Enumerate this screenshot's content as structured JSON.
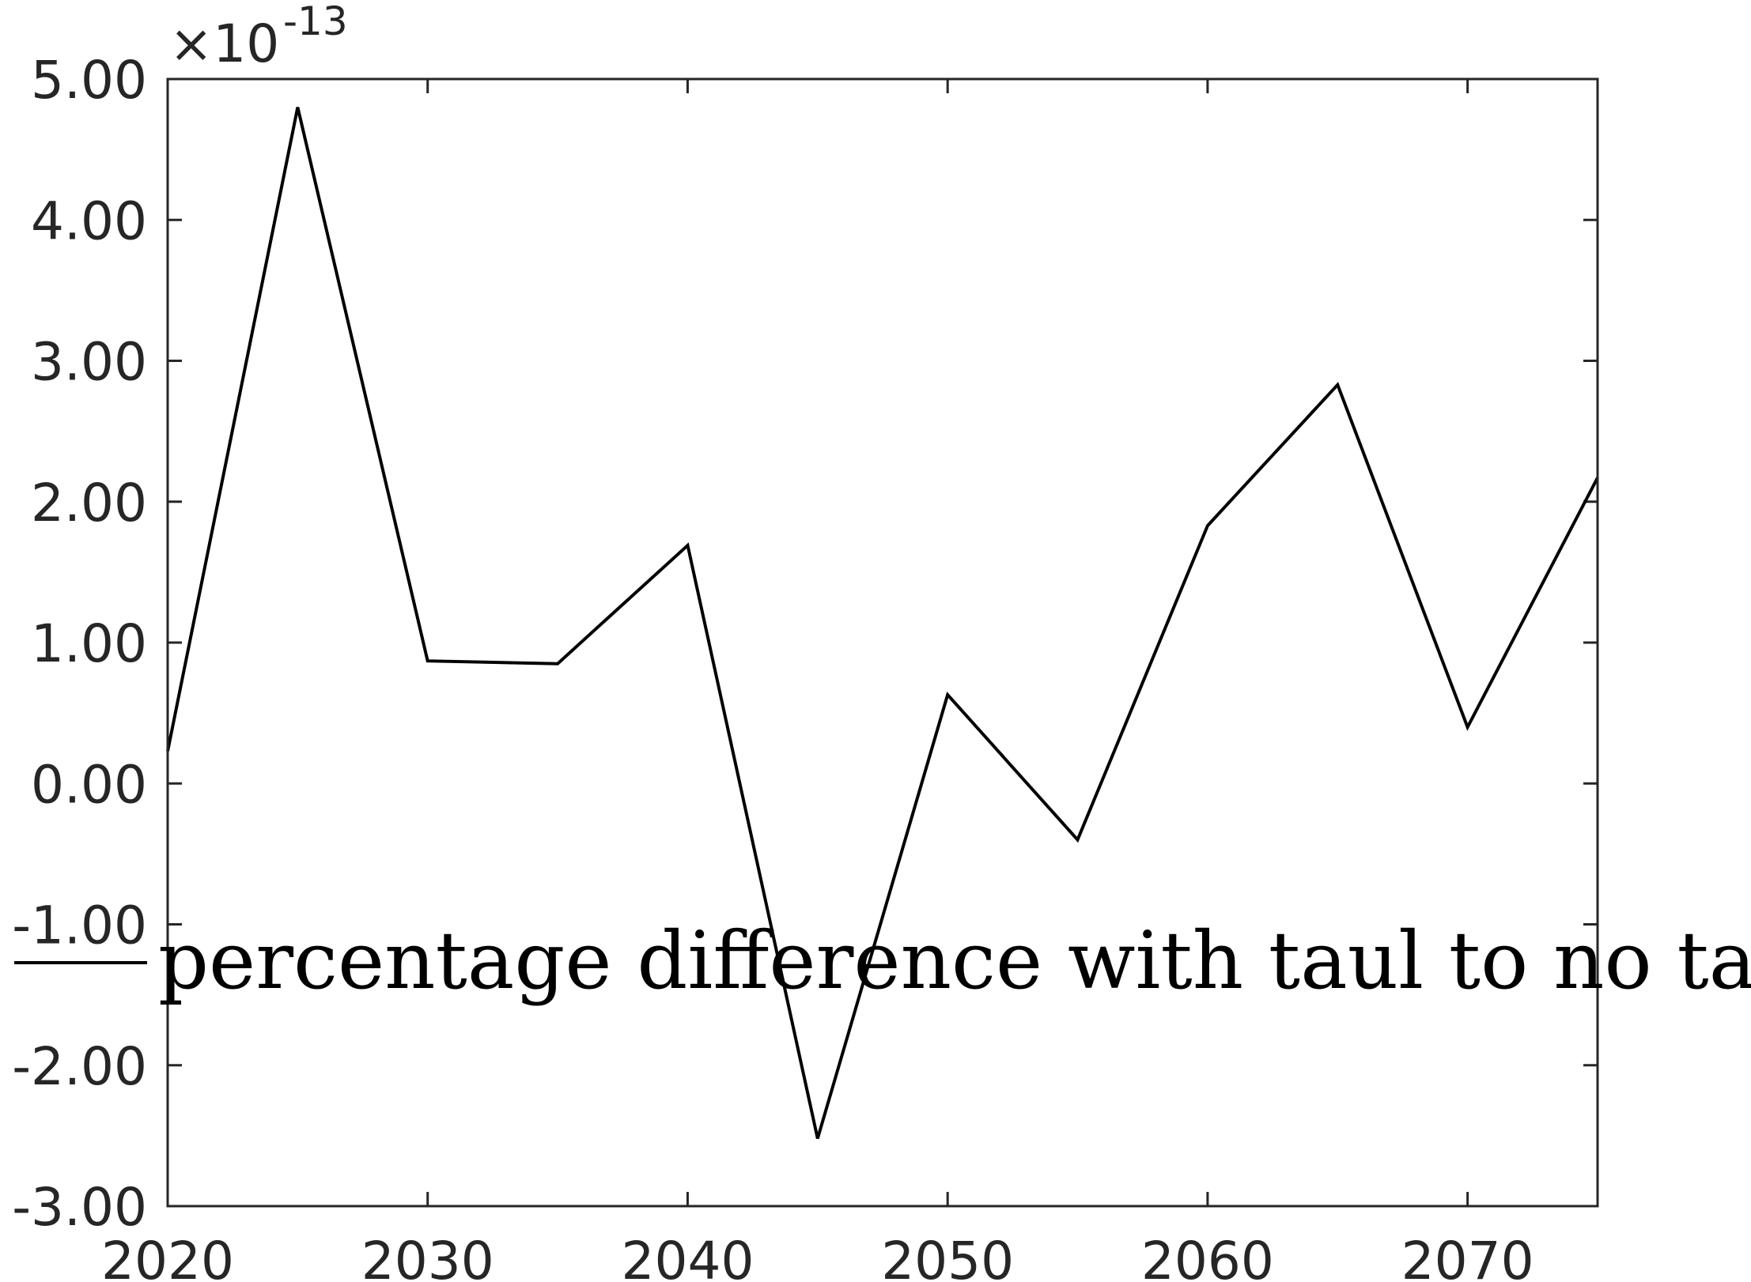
{
  "chart_data": {
    "type": "line",
    "title": "",
    "xlabel": "",
    "ylabel": "",
    "y_multiplier_label": {
      "base": "×10",
      "exponent": "-13"
    },
    "xlim": [
      2020,
      2075
    ],
    "ylim": [
      -3.0,
      5.0
    ],
    "x_ticks": [
      2020,
      2030,
      2040,
      2050,
      2060,
      2070
    ],
    "x_tick_labels": [
      "2020",
      "2030",
      "2040",
      "2050",
      "2060",
      "2070"
    ],
    "y_ticks": [
      -3,
      -2,
      -1,
      0,
      1,
      2,
      3,
      4,
      5
    ],
    "y_tick_labels": [
      "-3.00",
      "-2.00",
      "-1.00",
      "0.00",
      "1.00",
      "2.00",
      "3.00",
      "4.00",
      "5.00"
    ],
    "grid": false,
    "legend_position": "center-left",
    "series": [
      {
        "name": "percentage difference with taul to no taul",
        "color": "#000000",
        "x": [
          2020,
          2025,
          2030,
          2035,
          2040,
          2045,
          2050,
          2055,
          2060,
          2065,
          2070,
          2075
        ],
        "y": [
          0.23,
          4.8,
          0.87,
          0.85,
          1.69,
          -2.52,
          0.63,
          -0.4,
          1.83,
          2.83,
          0.4,
          2.17
        ]
      }
    ]
  }
}
